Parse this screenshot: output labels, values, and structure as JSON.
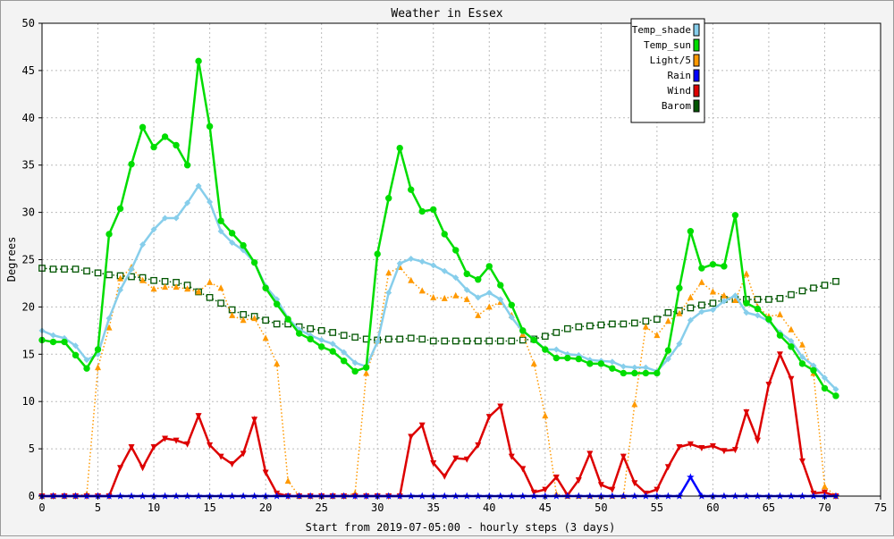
{
  "chart_data": {
    "type": "line",
    "title": "Weather in Essex",
    "xlabel": "Start from 2019-07-05:00 - hourly steps (3 days)",
    "ylabel": "Degrees",
    "xlim": [
      0,
      75
    ],
    "ylim": [
      0,
      50
    ],
    "xticks": [
      0,
      5,
      10,
      15,
      20,
      25,
      30,
      35,
      40,
      45,
      50,
      55,
      60,
      65,
      70,
      75
    ],
    "yticks": [
      0,
      5,
      10,
      15,
      20,
      25,
      30,
      35,
      40,
      45,
      50
    ],
    "grid": true,
    "legend_position": "top-right",
    "series": [
      {
        "name": "Barom",
        "color": "#005500",
        "marker": "square-open",
        "style": "dotted",
        "values": [
          24.1,
          24.0,
          24.0,
          24.0,
          23.8,
          23.6,
          23.4,
          23.3,
          23.2,
          23.1,
          22.8,
          22.7,
          22.6,
          22.3,
          21.6,
          21.0,
          20.4,
          19.7,
          19.2,
          19.0,
          18.6,
          18.2,
          18.2,
          17.9,
          17.7,
          17.5,
          17.3,
          17.0,
          16.8,
          16.6,
          16.5,
          16.6,
          16.6,
          16.7,
          16.6,
          16.4,
          16.4,
          16.4,
          16.4,
          16.4,
          16.4,
          16.4,
          16.4,
          16.5,
          16.6,
          16.9,
          17.3,
          17.7,
          17.9,
          18.0,
          18.1,
          18.2,
          18.2,
          18.3,
          18.5,
          18.7,
          19.4,
          19.6,
          19.9,
          20.2,
          20.4,
          20.8,
          20.8,
          20.8,
          20.8,
          20.8,
          20.9,
          21.3,
          21.7,
          22.0,
          22.3,
          22.7
        ]
      },
      {
        "name": "Light/5",
        "color": "#ff9900",
        "marker": "triangle-up",
        "style": "dotted",
        "values": [
          0,
          0,
          0,
          0,
          0.2,
          13.6,
          17.8,
          23.0,
          24.2,
          22.8,
          21.9,
          22.1,
          22.1,
          21.9,
          21.6,
          22.6,
          22.0,
          19.1,
          18.6,
          18.8,
          16.7,
          14.0,
          1.6,
          0,
          0,
          0,
          0,
          0,
          0.3,
          13.0,
          16.4,
          23.6,
          24.2,
          22.8,
          21.7,
          21.0,
          20.9,
          21.2,
          20.8,
          19.1,
          20.0,
          20.5,
          19.1,
          17.1,
          14.0,
          8.5,
          0.2,
          0,
          0,
          0,
          0,
          0,
          0,
          9.7,
          17.9,
          17.0,
          18.5,
          19.3,
          21.0,
          22.6,
          21.6,
          21.2,
          20.7,
          23.5,
          20.0,
          19.0,
          19.2,
          17.6,
          16.0,
          13.0,
          1.0,
          0
        ]
      },
      {
        "name": "Temp_shade",
        "color": "#87ceeb",
        "marker": "diamond",
        "style": "solid",
        "values": [
          17.5,
          17.0,
          16.7,
          15.9,
          14.4,
          15.0,
          18.8,
          21.8,
          24.0,
          26.6,
          28.2,
          29.4,
          29.4,
          31.0,
          32.8,
          31.1,
          28.0,
          26.8,
          26.0,
          24.7,
          22.2,
          20.8,
          18.8,
          17.6,
          17.0,
          16.5,
          16.1,
          15.2,
          14.1,
          13.7,
          16.3,
          21.5,
          24.6,
          25.1,
          24.8,
          24.4,
          23.8,
          23.1,
          21.8,
          21.0,
          21.5,
          20.8,
          18.9,
          17.4,
          16.6,
          15.5,
          15.5,
          15.0,
          14.9,
          14.4,
          14.3,
          14.2,
          13.7,
          13.6,
          13.6,
          13.2,
          14.5,
          16.1,
          18.6,
          19.5,
          19.7,
          20.6,
          21.2,
          19.4,
          19.1,
          18.5,
          17.3,
          16.4,
          14.7,
          13.8,
          12.5,
          11.3
        ]
      },
      {
        "name": "Temp_sun",
        "color": "#00dd00",
        "marker": "circle",
        "style": "solid",
        "values": [
          16.5,
          16.3,
          16.3,
          14.9,
          13.5,
          15.5,
          27.7,
          30.4,
          35.1,
          39.0,
          36.9,
          38.0,
          37.1,
          35.0,
          46.0,
          39.1,
          29.1,
          27.8,
          26.5,
          24.7,
          22.0,
          20.3,
          18.7,
          17.2,
          16.6,
          15.8,
          15.3,
          14.3,
          13.2,
          13.6,
          25.6,
          31.5,
          36.8,
          32.4,
          30.1,
          30.3,
          27.7,
          26.0,
          23.5,
          22.9,
          24.3,
          22.3,
          20.2,
          17.5,
          16.5,
          15.5,
          14.6,
          14.6,
          14.5,
          14.0,
          14.0,
          13.5,
          13.0,
          13.0,
          13.0,
          13.0,
          15.4,
          22.0,
          28.0,
          24.1,
          24.5,
          24.3,
          29.7,
          20.4,
          19.8,
          18.7,
          17.0,
          15.8,
          14.0,
          13.3,
          11.4,
          10.6
        ]
      },
      {
        "name": "Wind",
        "color": "#dd0000",
        "marker": "triangle-down",
        "style": "solid",
        "values": [
          0,
          0,
          0,
          0,
          0,
          0,
          0,
          3.0,
          5.2,
          3.0,
          5.2,
          6.1,
          5.9,
          5.5,
          8.5,
          5.4,
          4.2,
          3.4,
          4.5,
          8.1,
          2.5,
          0.3,
          0,
          0,
          0,
          0,
          0,
          0,
          0,
          0,
          0,
          0,
          0,
          6.3,
          7.5,
          3.5,
          2.1,
          4.0,
          3.9,
          5.4,
          8.4,
          9.5,
          4.2,
          2.9,
          0.4,
          0.7,
          2.0,
          0.1,
          1.7,
          4.5,
          1.2,
          0.7,
          4.2,
          1.4,
          0.3,
          0.7,
          3.1,
          5.2,
          5.5,
          5.1,
          5.3,
          4.8,
          4.9,
          8.9,
          5.9,
          11.8,
          15.0,
          12.4,
          3.7,
          0.3,
          0.4,
          0
        ]
      },
      {
        "name": "Rain",
        "color": "#0000ff",
        "marker": "star",
        "style": "solid",
        "values": [
          0,
          0,
          0,
          0,
          0,
          0,
          0,
          0,
          0,
          0,
          0,
          0,
          0,
          0,
          0,
          0,
          0,
          0,
          0,
          0,
          0,
          0,
          0,
          0,
          0,
          0,
          0,
          0,
          0,
          0,
          0,
          0,
          0,
          0,
          0,
          0,
          0,
          0,
          0,
          0,
          0,
          0,
          0,
          0,
          0,
          0,
          0,
          0,
          0,
          0,
          0,
          0,
          0,
          0,
          0,
          0,
          0,
          0,
          2.0,
          0,
          0,
          0,
          0,
          0,
          0,
          0,
          0,
          0,
          0,
          0,
          0,
          0
        ]
      }
    ],
    "legend": [
      {
        "name": "Temp_shade",
        "color": "#87ceeb"
      },
      {
        "name": "Temp_sun",
        "color": "#00dd00"
      },
      {
        "name": "Light/5",
        "color": "#ff9900"
      },
      {
        "name": "Rain",
        "color": "#0000ff"
      },
      {
        "name": "Wind",
        "color": "#dd0000"
      },
      {
        "name": "Barom",
        "color": "#005500"
      }
    ]
  }
}
